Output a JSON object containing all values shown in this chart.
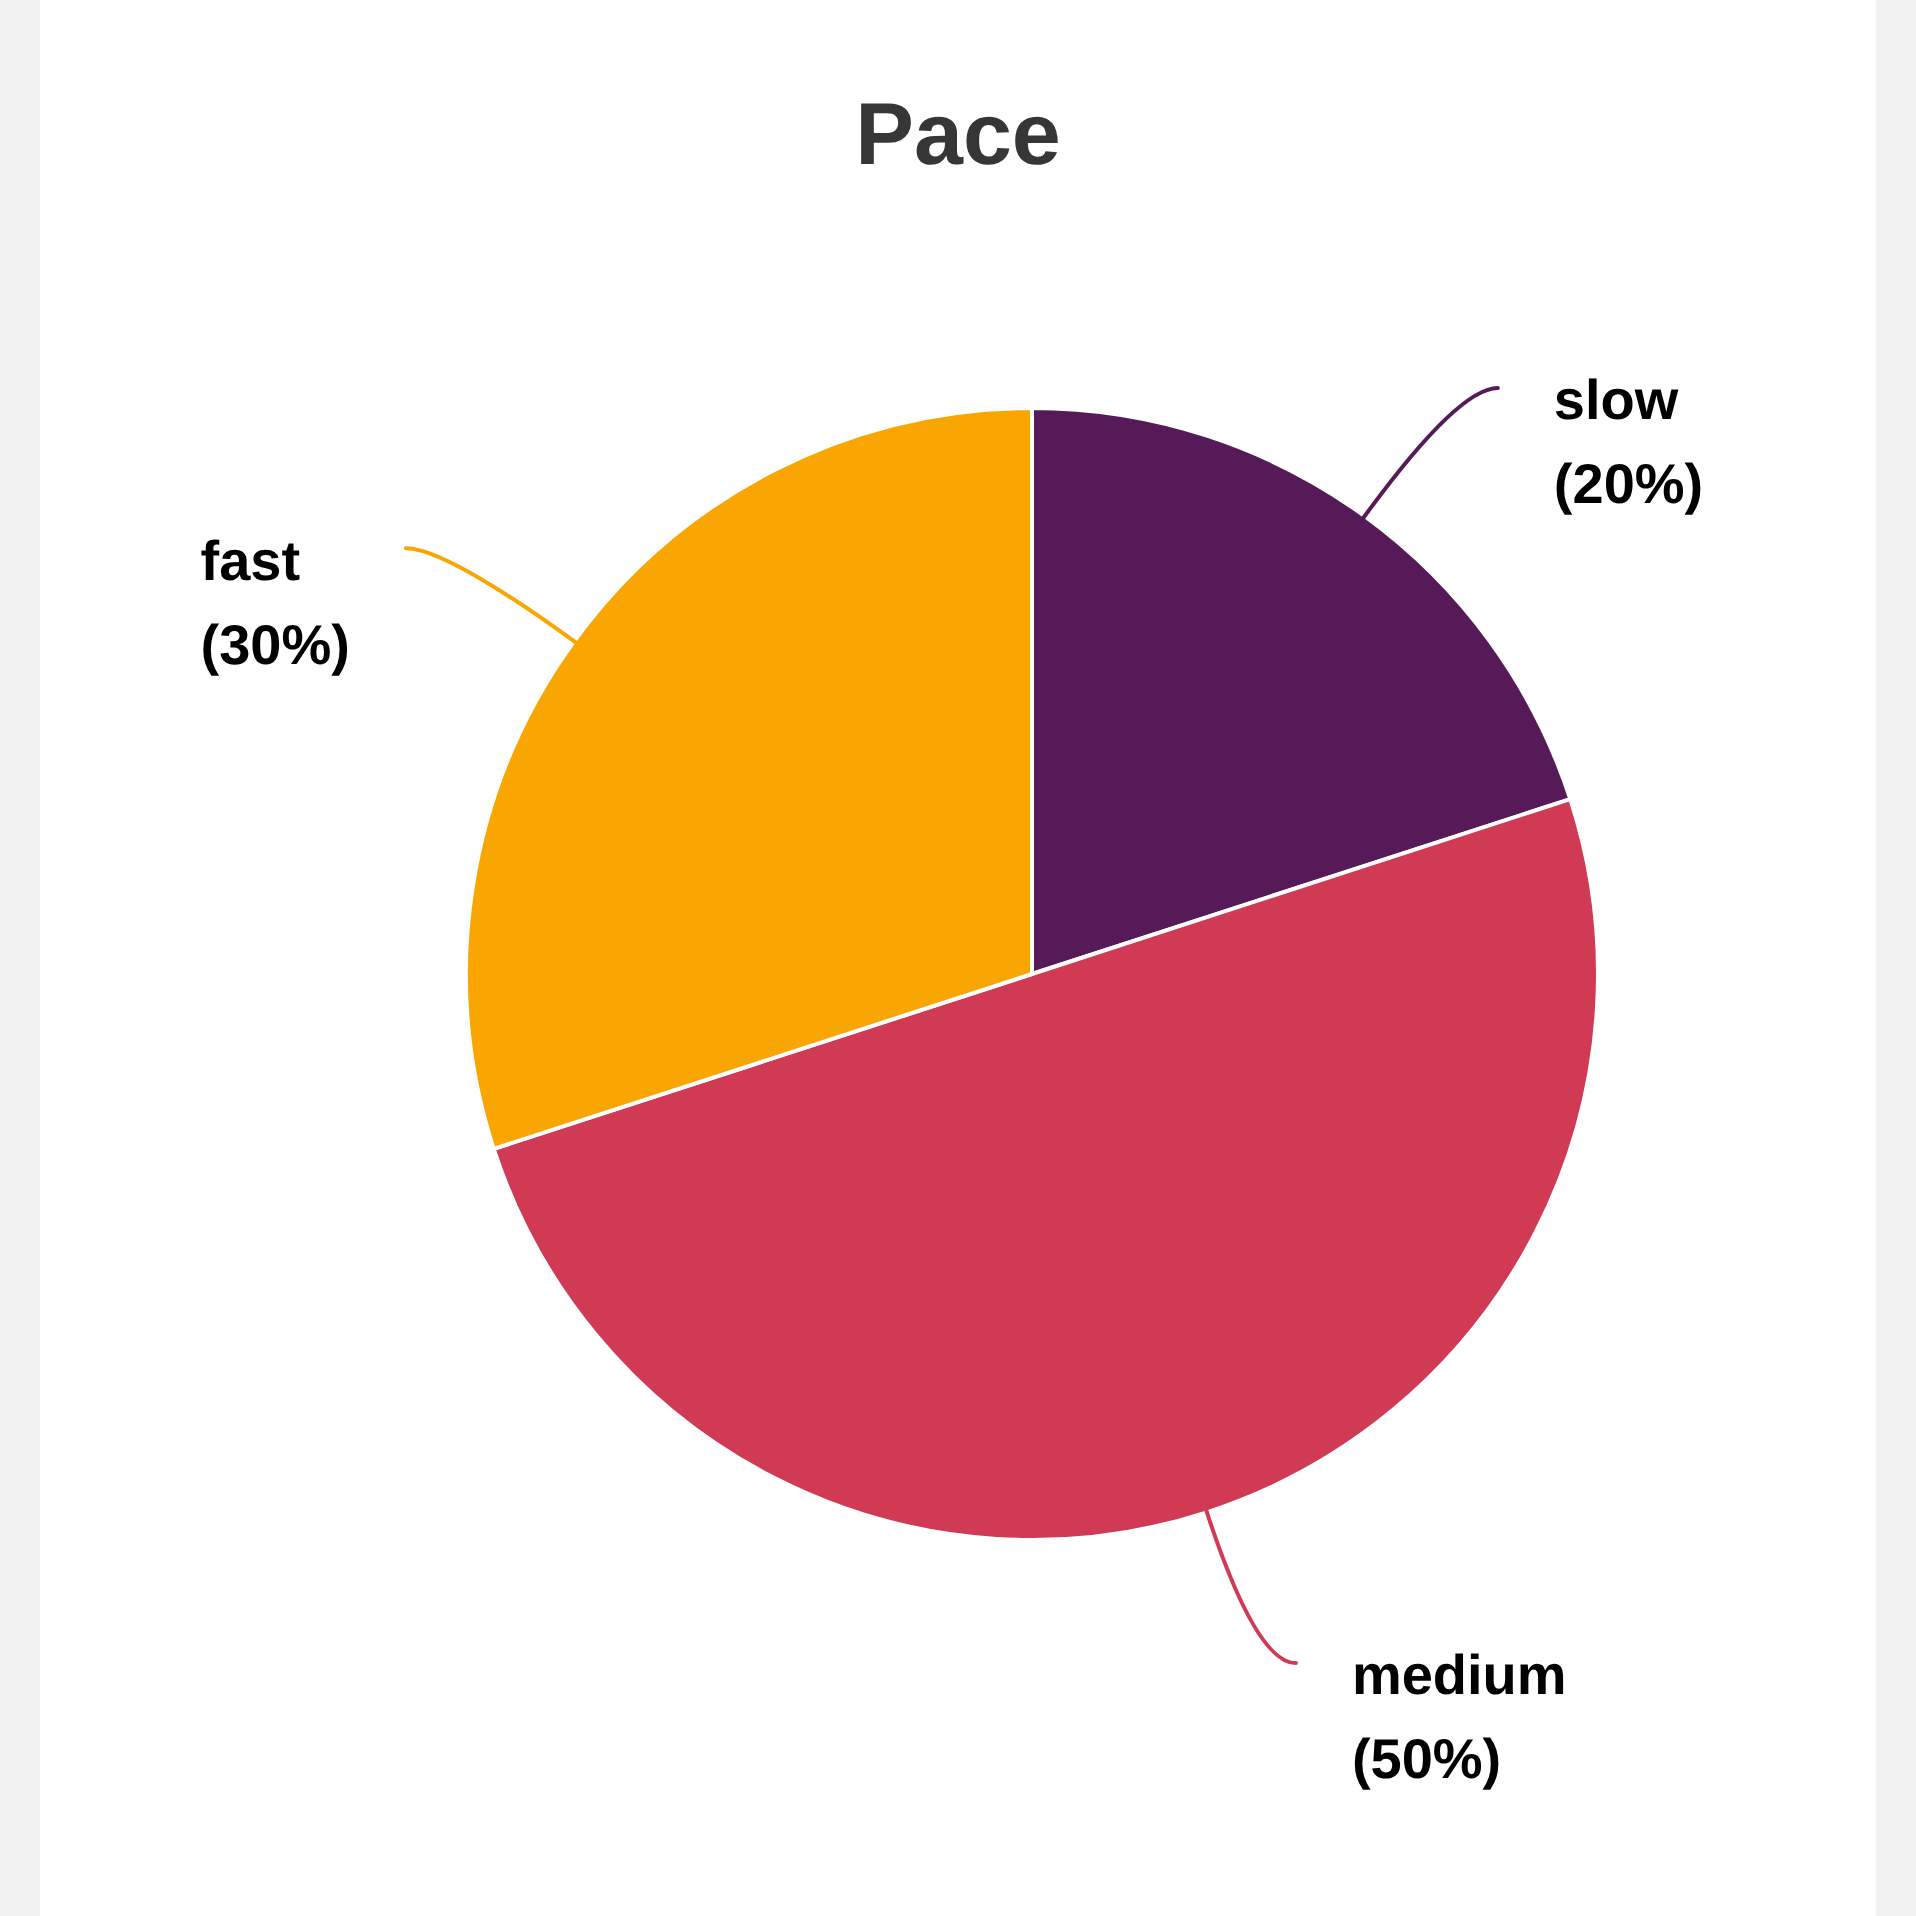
{
  "chart_data": {
    "type": "pie",
    "title": "Pace",
    "categories": [
      "slow",
      "medium",
      "fast"
    ],
    "values": [
      20,
      50,
      30
    ],
    "colors": [
      "#561a58",
      "#d03a54",
      "#f9a602"
    ],
    "value_labels": [
      "(20%)",
      "(50%)",
      "(30%)"
    ]
  }
}
